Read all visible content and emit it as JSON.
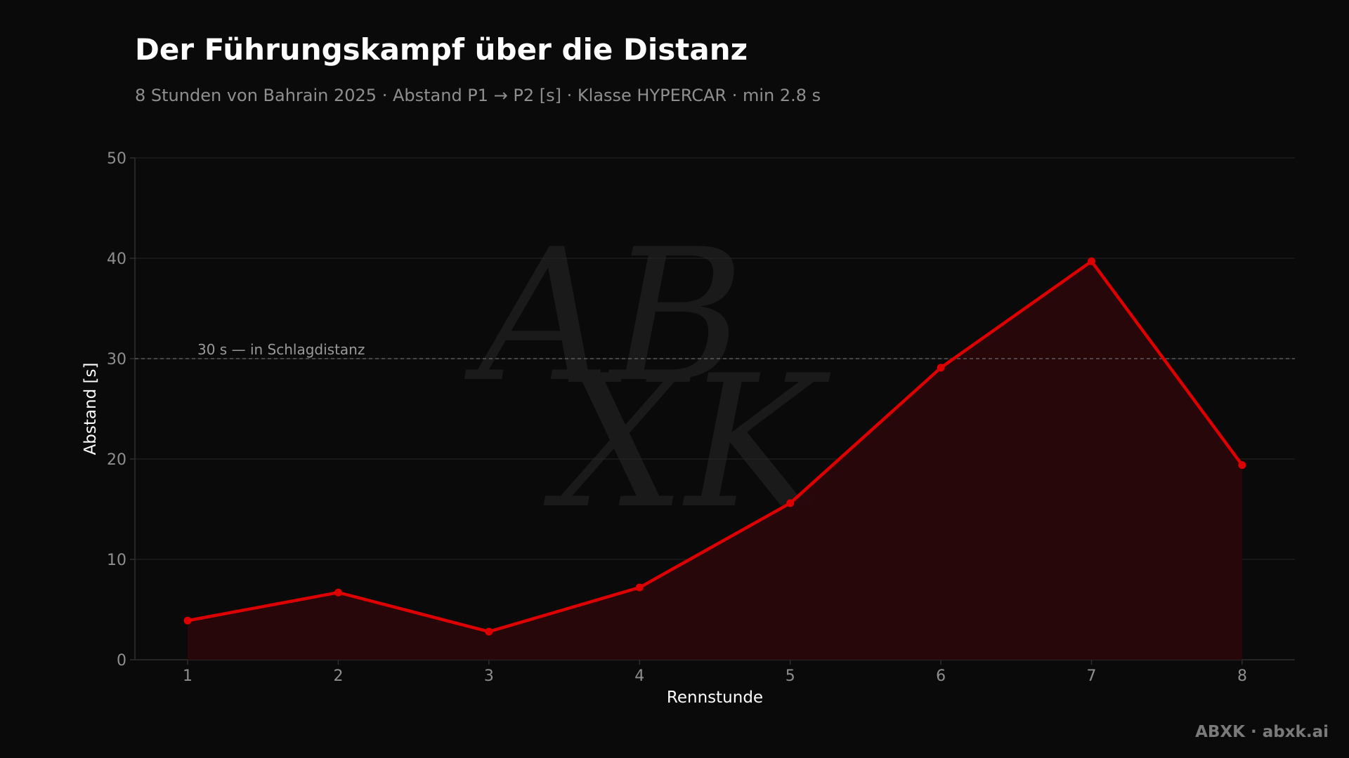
{
  "title": "Der Führungskampf über die Distanz",
  "subtitle": "8 Stunden von Bahrain 2025 · Abstand P1 → P2 [s] · Klasse HYPERCAR · min 2.8 s",
  "brand": "ABXK · abxk.ai",
  "watermark": {
    "line1": "AB",
    "line2": "XK"
  },
  "colors": {
    "background": "#0a0a0a",
    "line": "#dc0000",
    "area": "#2a070a",
    "grid": "#262626",
    "text_muted": "#8f8f8f",
    "threshold": "#6a6a6a"
  },
  "chart_data": {
    "type": "area",
    "xlabel": "Rennstunde",
    "ylabel": "Abstand [s]",
    "x": [
      1,
      2,
      3,
      4,
      5,
      6,
      7,
      8
    ],
    "series": [
      {
        "values": [
          3.9,
          6.7,
          2.8,
          7.2,
          15.6,
          29.1,
          39.7,
          19.4
        ]
      }
    ],
    "xticks": [
      "1",
      "2",
      "3",
      "4",
      "5",
      "6",
      "7",
      "8"
    ],
    "yticks": [
      "0",
      "10",
      "20",
      "30",
      "40",
      "50"
    ],
    "xlim": [
      0.65,
      8.35
    ],
    "ylim": [
      0,
      50
    ],
    "grid": "horizontal",
    "threshold": {
      "value": 30,
      "label": "30 s — in Schlagdistanz"
    },
    "markers": true,
    "legend": "none"
  }
}
